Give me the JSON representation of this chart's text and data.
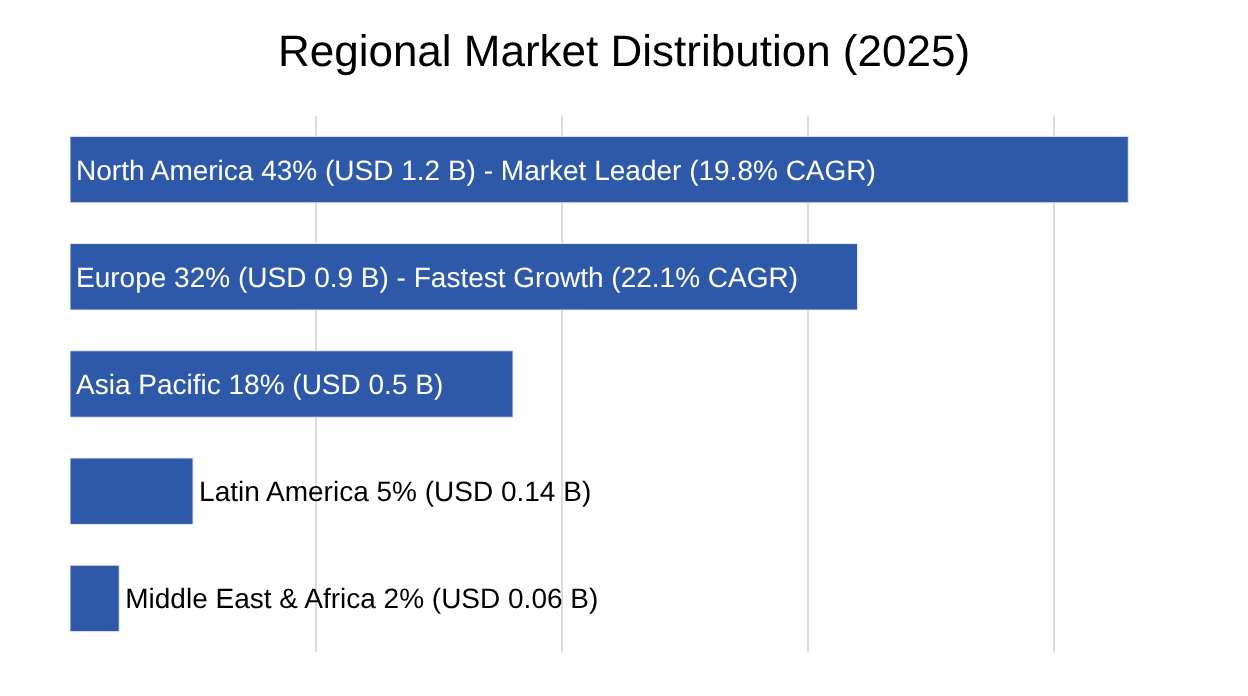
{
  "chart_data": {
    "type": "bar",
    "orientation": "horizontal",
    "title": "Regional Market Distribution (2025)",
    "categories": [
      null,
      null,
      null,
      null,
      null
    ],
    "values": [
      43,
      32,
      18,
      5,
      2
    ],
    "value_labels": [
      "North America 43% (USD 1.2 B) - Market Leader (19.8% CAGR)",
      "Europe 32% (USD 0.9 B) - Fastest Growth (22.1% CAGR)",
      "Asia Pacific 18% (USD 0.5 B)",
      "Latin America 5% (USD 0.14 B)",
      "Middle East & Africa 2% (USD 0.06 B)"
    ],
    "color": "#2e59a8",
    "tick_labels": false,
    "grid": "x",
    "legend": false
  }
}
